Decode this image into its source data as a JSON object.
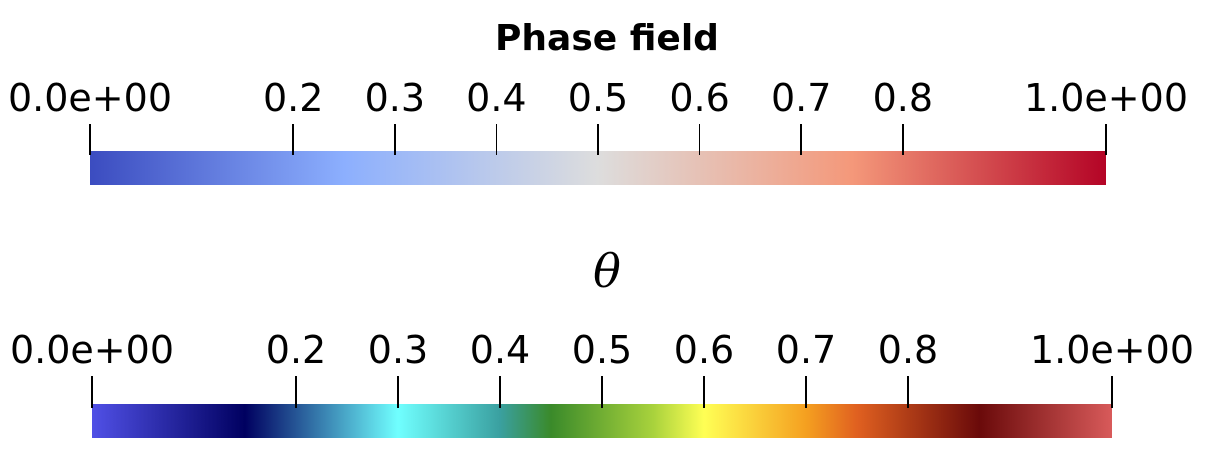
{
  "chart_data": [
    {
      "type": "colorbar",
      "title": "Phase field",
      "range": [
        0,
        1
      ],
      "tick_values": [
        0.0,
        0.2,
        0.3,
        0.4,
        0.5,
        0.6,
        0.7,
        0.8,
        1.0
      ],
      "tick_labels": [
        "0.0e+00",
        "0.2",
        "0.3",
        "0.4",
        "0.5",
        "0.6",
        "0.7",
        "0.8",
        "1.0e+00"
      ],
      "colormap": "Cool to Warm",
      "color_stops": [
        {
          "value": 0.0,
          "color": "#3b4cc0"
        },
        {
          "value": 0.25,
          "color": "#8caffe"
        },
        {
          "value": 0.5,
          "color": "#dddddd"
        },
        {
          "value": 0.75,
          "color": "#f4987a"
        },
        {
          "value": 1.0,
          "color": "#b40426"
        }
      ]
    },
    {
      "type": "colorbar",
      "title": "θ",
      "range": [
        0,
        1
      ],
      "tick_values": [
        0.0,
        0.2,
        0.3,
        0.4,
        0.5,
        0.6,
        0.7,
        0.8,
        1.0
      ],
      "tick_labels": [
        "0.0e+00",
        "0.2",
        "0.3",
        "0.4",
        "0.5",
        "0.6",
        "0.7",
        "0.8",
        "1.0e+00"
      ],
      "colormap": "Jet-like",
      "color_stops": [
        {
          "value": 0.0,
          "color": "#5050e6"
        },
        {
          "value": 0.15,
          "color": "#000060"
        },
        {
          "value": 0.3,
          "color": "#70ffff"
        },
        {
          "value": 0.4,
          "color": "#3aa0a0"
        },
        {
          "value": 0.45,
          "color": "#3a8a2a"
        },
        {
          "value": 0.55,
          "color": "#a8d23c"
        },
        {
          "value": 0.6,
          "color": "#ffff55"
        },
        {
          "value": 0.7,
          "color": "#f5a020"
        },
        {
          "value": 0.75,
          "color": "#e06020"
        },
        {
          "value": 0.87,
          "color": "#6a0a0a"
        },
        {
          "value": 1.0,
          "color": "#d85a5a"
        }
      ]
    }
  ]
}
